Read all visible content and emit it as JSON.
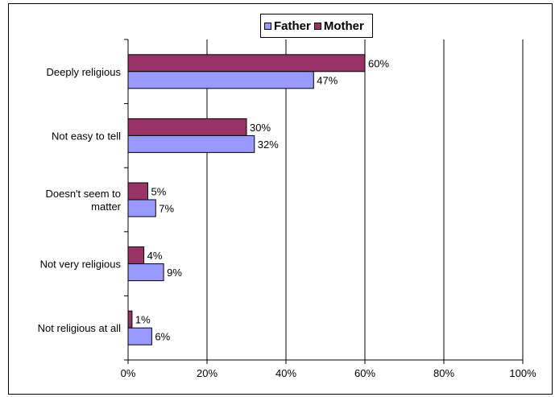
{
  "chart_data": {
    "type": "bar",
    "orientation": "horizontal",
    "categories": [
      "Deeply religious",
      "Not easy to tell",
      "Doesn't seem to matter",
      "Not very religious",
      "Not religious at all"
    ],
    "category_lines": [
      [
        "Deeply religious"
      ],
      [
        "Not easy to tell"
      ],
      [
        "Doesn't seem to",
        "matter"
      ],
      [
        "Not very religious"
      ],
      [
        "Not religious at all"
      ]
    ],
    "series": [
      {
        "name": "Mother",
        "color": "#993366",
        "values": [
          60,
          30,
          5,
          4,
          1
        ]
      },
      {
        "name": "Father",
        "color": "#9999ff",
        "values": [
          47,
          32,
          7,
          9,
          6
        ]
      }
    ],
    "xlim": [
      0,
      100
    ],
    "xticks": [
      0,
      20,
      40,
      60,
      80,
      100
    ],
    "tick_suffix": "%",
    "grid": true,
    "legend": {
      "position": "top",
      "order": [
        "Father",
        "Mother"
      ]
    }
  }
}
